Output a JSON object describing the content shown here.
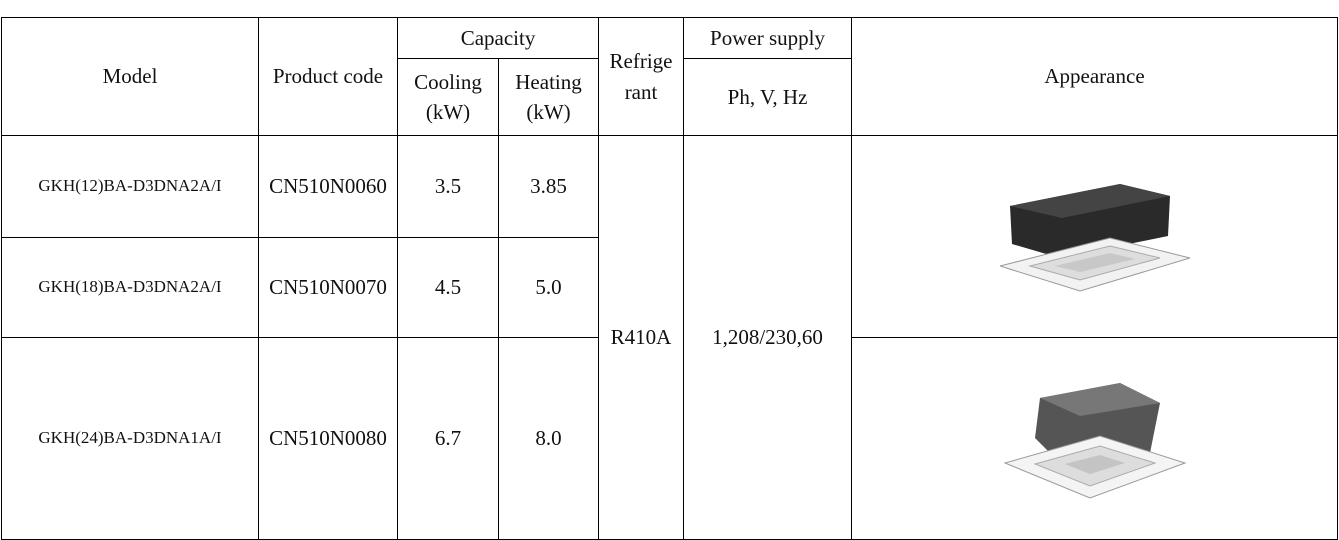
{
  "table": {
    "header": {
      "model": "Model",
      "product_code": "Product code",
      "capacity": "Capacity",
      "cooling": "Cooling\n(kW)",
      "heating": "Heating\n(kW)",
      "refrigerant": "Refrige\nrant",
      "power_supply": "Power supply",
      "power_units": "Ph, V, Hz",
      "appearance": "Appearance"
    },
    "rows": [
      {
        "model": "GKH(12)BA-D3DNA2A/I",
        "product_code": "CN510N0060",
        "cooling": "3.5",
        "heating": "3.85"
      },
      {
        "model": "GKH(18)BA-D3DNA2A/I",
        "product_code": "CN510N0070",
        "cooling": "4.5",
        "heating": "5.0"
      },
      {
        "model": "GKH(24)BA-D3DNA1A/I",
        "product_code": "CN510N0080",
        "cooling": "6.7",
        "heating": "8.0"
      }
    ],
    "refrigerant": "R410A",
    "power_supply": "1,208/230,60"
  }
}
